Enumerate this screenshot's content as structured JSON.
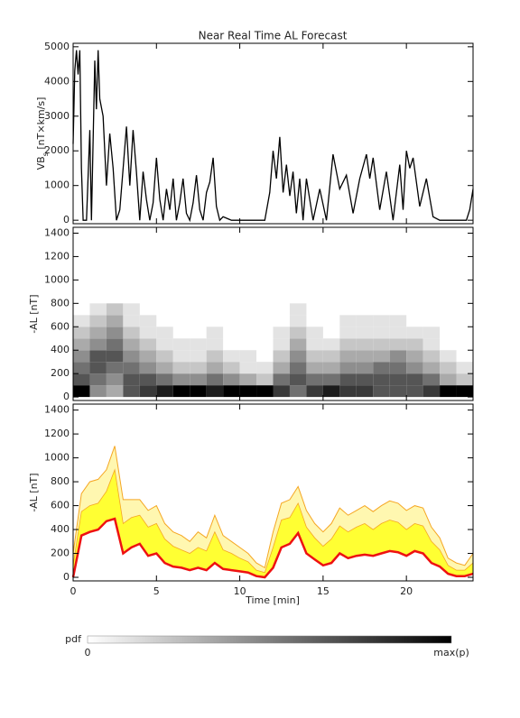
{
  "chart_data": [
    {
      "type": "line",
      "title": "Near Real Time AL Forecast",
      "ylabel": "VB",
      "ylabel_sub": "s",
      "ylabel_unit": " [nT×km/s]",
      "xlim": [
        0,
        24
      ],
      "ylim": [
        -100,
        5100
      ],
      "yticks": [
        0,
        1000,
        2000,
        3000,
        4000,
        5000
      ],
      "color": "#000000",
      "x": [
        0,
        0.1,
        0.2,
        0.3,
        0.4,
        0.5,
        0.6,
        0.8,
        1.0,
        1.1,
        1.3,
        1.4,
        1.5,
        1.6,
        1.8,
        2.0,
        2.2,
        2.4,
        2.6,
        2.8,
        3.0,
        3.2,
        3.4,
        3.6,
        3.8,
        4.0,
        4.2,
        4.4,
        4.6,
        4.8,
        5.0,
        5.2,
        5.4,
        5.6,
        5.8,
        6.0,
        6.2,
        6.4,
        6.6,
        6.8,
        7.0,
        7.2,
        7.4,
        7.6,
        7.8,
        8.0,
        8.2,
        8.4,
        8.6,
        8.8,
        9.0,
        9.5,
        10,
        10.5,
        11,
        11.5,
        11.8,
        12.0,
        12.2,
        12.4,
        12.6,
        12.8,
        13.0,
        13.2,
        13.4,
        13.6,
        13.8,
        14.0,
        14.4,
        14.8,
        15.2,
        15.6,
        16.0,
        16.4,
        16.8,
        17.2,
        17.6,
        17.8,
        18.0,
        18.4,
        18.8,
        19.2,
        19.6,
        19.8,
        20.0,
        20.2,
        20.4,
        20.8,
        21.2,
        21.6,
        22,
        22.5,
        23,
        23.4,
        23.6,
        23.8,
        24
      ],
      "values": [
        2200,
        4300,
        4900,
        4200,
        4900,
        1500,
        0,
        0,
        2600,
        0,
        4600,
        3200,
        4900,
        3500,
        3000,
        1000,
        2500,
        1500,
        0,
        300,
        1500,
        2700,
        1000,
        2600,
        1400,
        0,
        1400,
        600,
        0,
        500,
        1800,
        600,
        0,
        900,
        300,
        1200,
        0,
        500,
        1200,
        200,
        0,
        500,
        1300,
        300,
        0,
        800,
        1100,
        1800,
        400,
        0,
        100,
        0,
        0,
        0,
        0,
        0,
        800,
        2000,
        1200,
        2400,
        800,
        1600,
        700,
        1400,
        200,
        1200,
        0,
        1200,
        0,
        900,
        0,
        1900,
        900,
        1300,
        200,
        1200,
        1900,
        1200,
        1800,
        300,
        1400,
        0,
        1600,
        300,
        2000,
        1500,
        1800,
        400,
        1200,
        100,
        0,
        0,
        0,
        0,
        0,
        300,
        900
      ]
    },
    {
      "type": "heatmap",
      "ylabel": "-AL [nT]",
      "xlim": [
        0,
        24
      ],
      "ylim": [
        -30,
        1450
      ],
      "yticks": [
        0,
        200,
        400,
        600,
        800,
        1000,
        1200,
        1400
      ],
      "xbins": [
        0,
        1,
        2,
        3,
        4,
        5,
        6,
        7,
        8,
        9,
        10,
        11,
        12,
        13,
        14,
        15,
        16,
        17,
        18,
        19,
        20,
        21,
        22,
        23,
        24
      ],
      "ybins": [
        0,
        100,
        200,
        300,
        400,
        500,
        600,
        700,
        800
      ],
      "zlim": [
        0,
        9
      ],
      "z": [
        [
          9,
          6,
          5,
          4,
          3,
          2,
          1,
          0
        ],
        [
          4,
          5,
          6,
          6,
          4,
          3,
          2,
          1
        ],
        [
          3,
          4,
          5,
          6,
          5,
          4,
          3,
          2
        ],
        [
          6,
          6,
          5,
          4,
          3,
          2,
          1,
          1
        ],
        [
          7,
          6,
          4,
          3,
          2,
          1,
          1,
          0
        ],
        [
          8,
          5,
          3,
          2,
          1,
          1,
          0,
          0
        ],
        [
          9,
          4,
          2,
          1,
          1,
          0,
          0,
          0
        ],
        [
          9,
          4,
          2,
          1,
          1,
          0,
          0,
          0
        ],
        [
          8,
          5,
          3,
          2,
          1,
          1,
          0,
          0
        ],
        [
          9,
          4,
          2,
          1,
          0,
          0,
          0,
          0
        ],
        [
          9,
          3,
          1,
          1,
          0,
          0,
          0,
          0
        ],
        [
          9,
          2,
          1,
          0,
          0,
          0,
          0,
          0
        ],
        [
          7,
          5,
          3,
          2,
          1,
          1,
          0,
          0
        ],
        [
          5,
          6,
          5,
          4,
          3,
          2,
          1,
          1
        ],
        [
          7,
          5,
          3,
          2,
          1,
          1,
          0,
          0
        ],
        [
          8,
          5,
          3,
          2,
          1,
          0,
          0,
          0
        ],
        [
          7,
          6,
          4,
          3,
          2,
          1,
          1,
          0
        ],
        [
          7,
          6,
          4,
          3,
          2,
          1,
          1,
          0
        ],
        [
          6,
          6,
          5,
          3,
          2,
          1,
          1,
          0
        ],
        [
          6,
          6,
          5,
          4,
          2,
          1,
          1,
          0
        ],
        [
          6,
          6,
          4,
          3,
          2,
          1,
          0,
          0
        ],
        [
          7,
          5,
          3,
          2,
          1,
          1,
          0,
          0
        ],
        [
          9,
          3,
          2,
          1,
          0,
          0,
          0,
          0
        ],
        [
          9,
          2,
          1,
          0,
          0,
          0,
          0,
          0
        ]
      ]
    },
    {
      "type": "band",
      "ylabel": "-AL [nT]",
      "xlabel": "Time [min]",
      "xlim": [
        0,
        24
      ],
      "xticks": [
        0,
        5,
        10,
        15,
        20
      ],
      "ylim": [
        -30,
        1450
      ],
      "yticks": [
        0,
        200,
        400,
        600,
        800,
        1000,
        1200,
        1400
      ],
      "x": [
        0,
        0.5,
        1,
        1.5,
        2,
        2.5,
        3,
        3.5,
        4,
        4.5,
        5,
        5.5,
        6,
        6.5,
        7,
        7.5,
        8,
        8.5,
        9,
        9.5,
        10,
        10.5,
        11,
        11.5,
        12,
        12.5,
        13,
        13.5,
        14,
        14.5,
        15,
        15.5,
        16,
        16.5,
        17,
        17.5,
        18,
        18.5,
        19,
        19.5,
        20,
        20.5,
        21,
        21.5,
        22,
        22.5,
        23,
        23.5,
        24
      ],
      "series": [
        {
          "color": "#f5a623",
          "values": [
            200,
            700,
            800,
            820,
            900,
            1100,
            650,
            650,
            650,
            560,
            600,
            450,
            380,
            350,
            300,
            380,
            330,
            520,
            350,
            300,
            250,
            200,
            120,
            80,
            380,
            620,
            650,
            760,
            560,
            450,
            380,
            450,
            580,
            520,
            560,
            600,
            550,
            600,
            640,
            620,
            560,
            600,
            580,
            420,
            330,
            160,
            120,
            100,
            200
          ]
        },
        {
          "color": "#ffff33",
          "values": [
            100,
            550,
            600,
            620,
            720,
            900,
            450,
            500,
            520,
            420,
            450,
            320,
            260,
            230,
            200,
            250,
            220,
            380,
            230,
            200,
            160,
            130,
            60,
            40,
            250,
            480,
            500,
            620,
            420,
            330,
            260,
            320,
            430,
            380,
            420,
            450,
            400,
            450,
            480,
            460,
            400,
            450,
            430,
            300,
            230,
            100,
            60,
            60,
            120
          ]
        },
        {
          "color": "#ee1111",
          "values": [
            0,
            350,
            380,
            400,
            470,
            490,
            200,
            250,
            280,
            180,
            200,
            120,
            90,
            80,
            60,
            80,
            60,
            120,
            70,
            60,
            50,
            40,
            10,
            0,
            80,
            250,
            280,
            370,
            200,
            150,
            100,
            120,
            200,
            160,
            180,
            190,
            180,
            200,
            220,
            210,
            180,
            220,
            200,
            120,
            90,
            30,
            10,
            10,
            30
          ]
        }
      ]
    },
    {
      "type": "colorbar",
      "label": "pdf",
      "min_label": "0",
      "max_label": "max(p)"
    }
  ]
}
